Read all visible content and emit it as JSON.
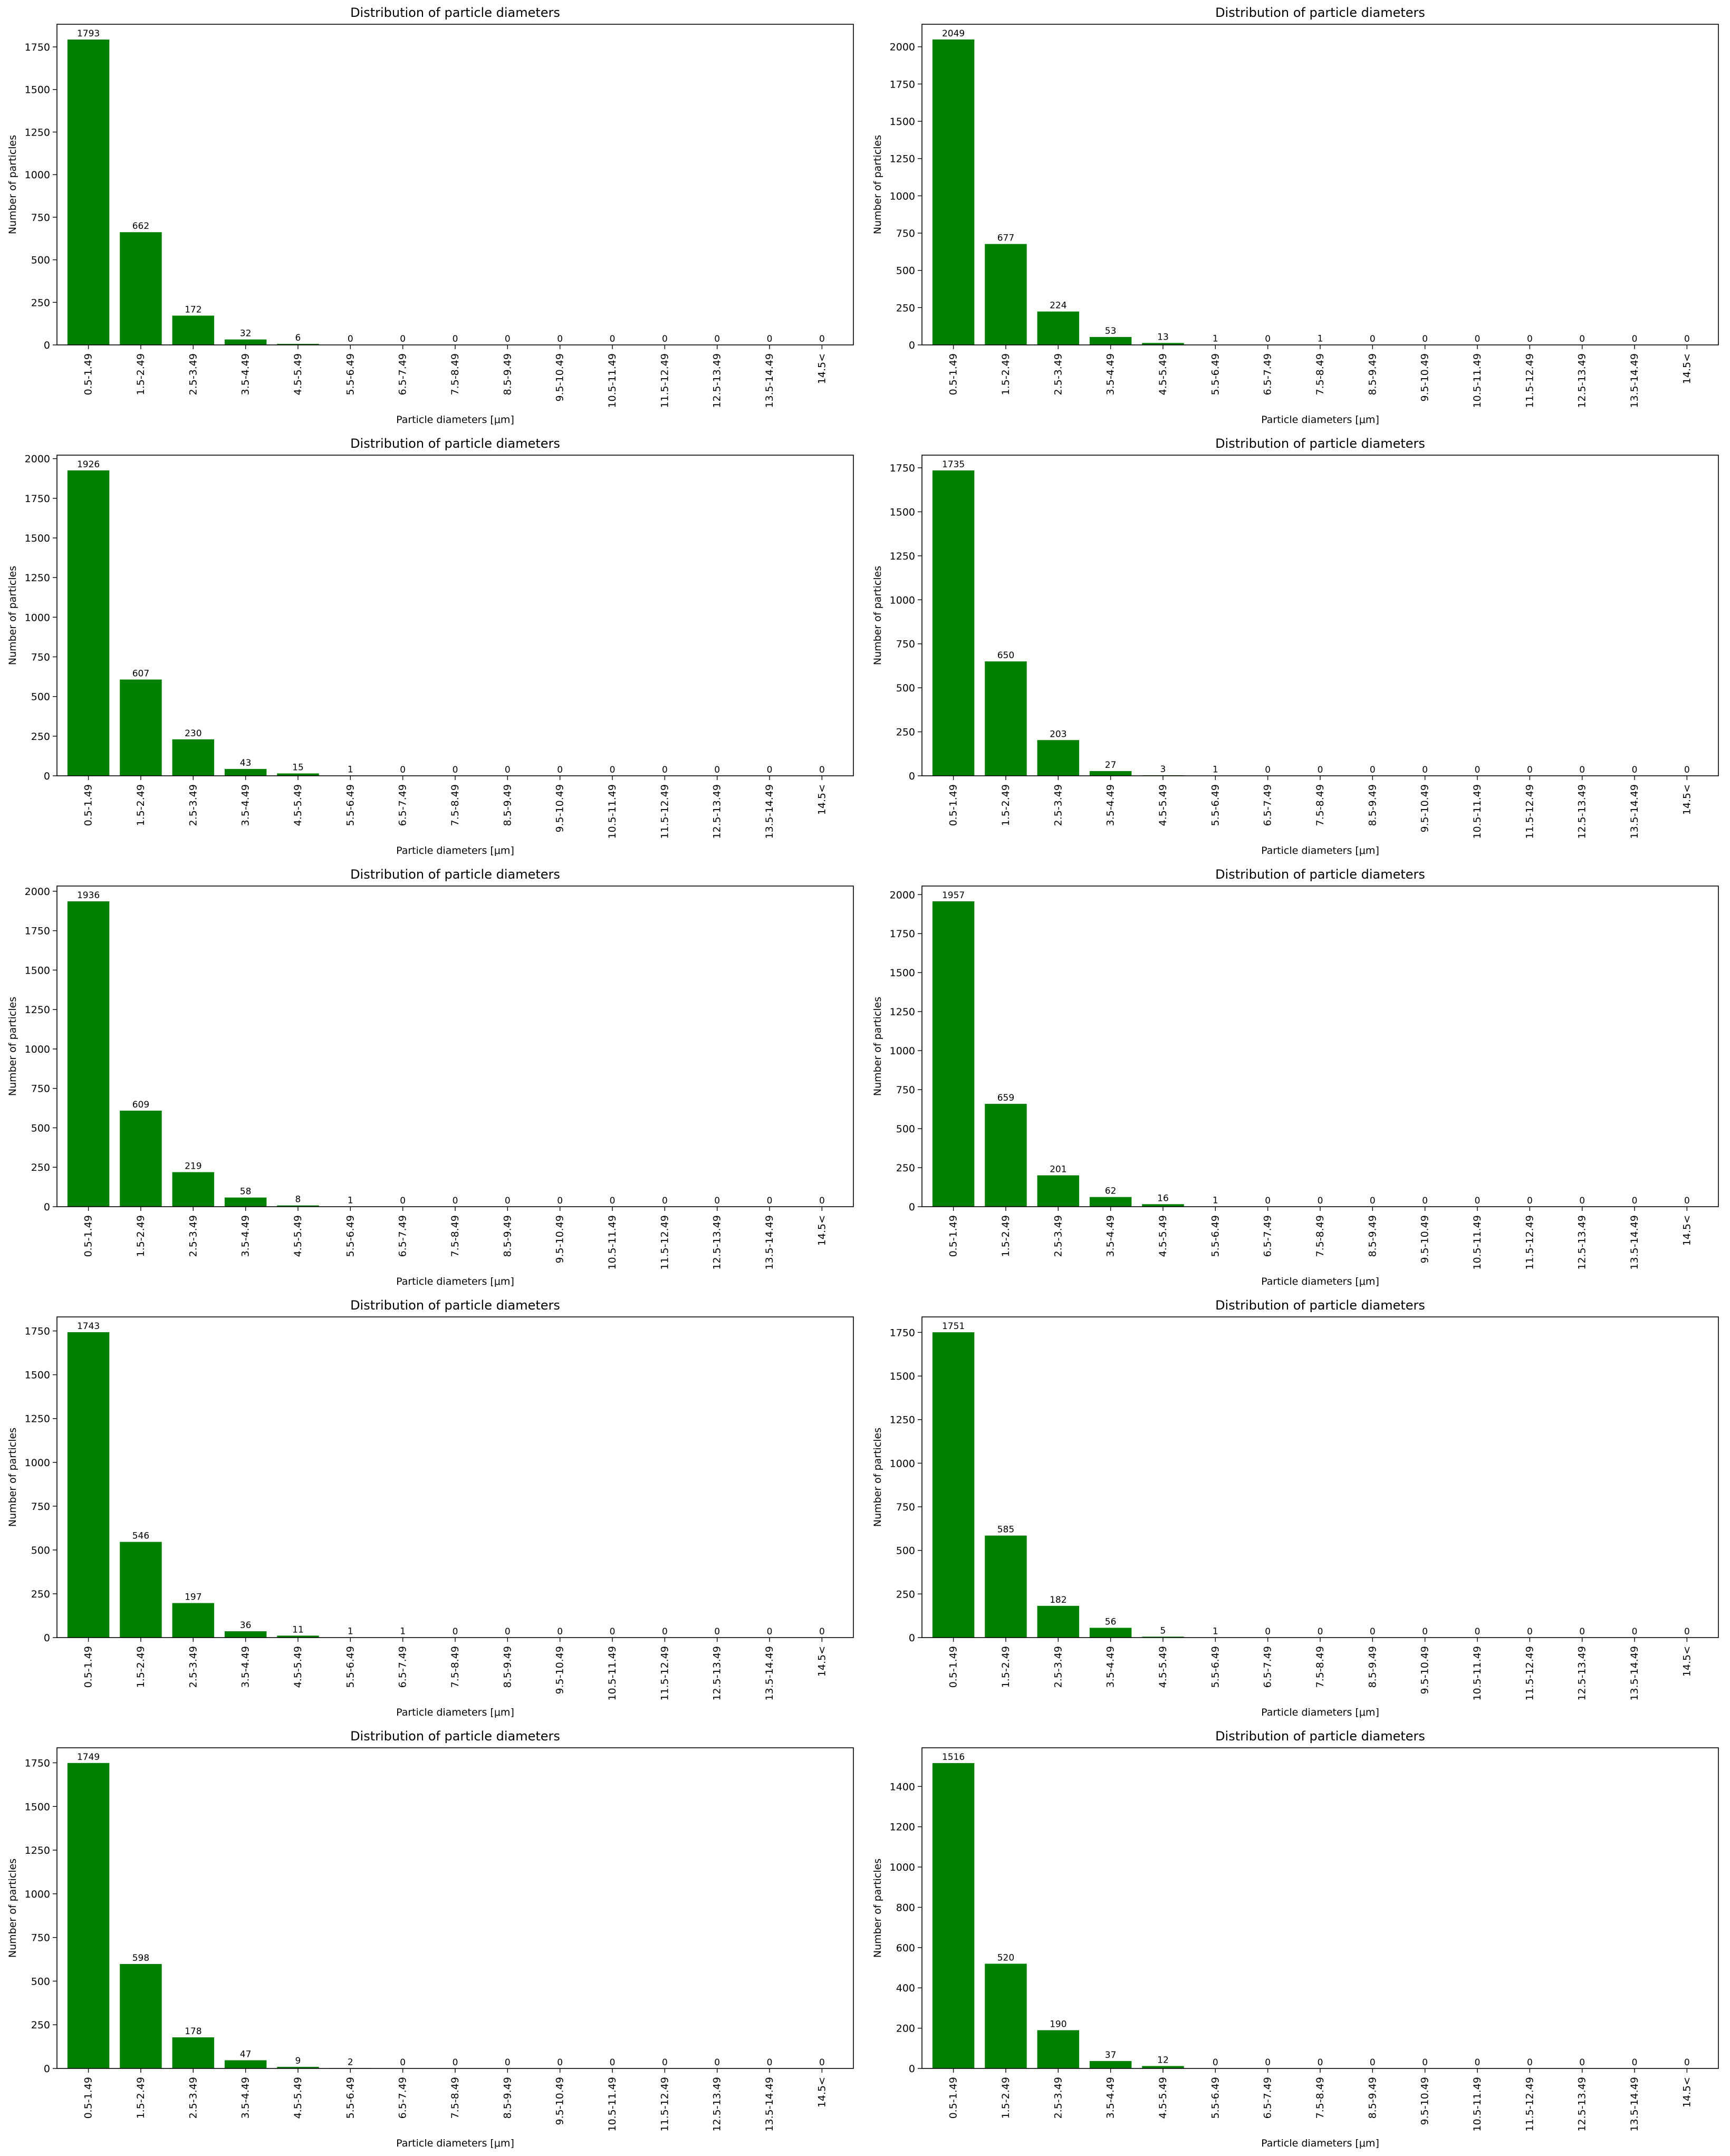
{
  "figure": {
    "layout": "5 rows x 2 columns grid of bar charts",
    "bar_color": "#008000",
    "axis_color": "#000000",
    "background": "#ffffff"
  },
  "chart_data": [
    {
      "type": "bar",
      "title": "Distribution of particle diameters",
      "xlabel": "Particle diameters [μm]",
      "ylabel": "Number of particles",
      "categories": [
        "0.5-1.49",
        "1.5-2.49",
        "2.5-3.49",
        "3.5-4.49",
        "4.5-5.49",
        "5.5-6.49",
        "6.5-7.49",
        "7.5-8.49",
        "8.5-9.49",
        "9.5-10.49",
        "10.5-11.49",
        "11.5-12.49",
        "12.5-13.49",
        "13.5-14.49",
        "14.5<"
      ],
      "values": [
        1793,
        662,
        172,
        32,
        6,
        0,
        0,
        0,
        0,
        0,
        0,
        0,
        0,
        0,
        0
      ],
      "yticks": [
        0,
        250,
        500,
        750,
        1000,
        1250,
        1500,
        1750
      ],
      "ylim": [
        0,
        1883
      ],
      "grid": false,
      "color": "#008000"
    },
    {
      "type": "bar",
      "title": "Distribution of particle diameters",
      "xlabel": "Particle diameters [μm]",
      "ylabel": "Number of particles",
      "categories": [
        "0.5-1.49",
        "1.5-2.49",
        "2.5-3.49",
        "3.5-4.49",
        "4.5-5.49",
        "5.5-6.49",
        "6.5-7.49",
        "7.5-8.49",
        "8.5-9.49",
        "9.5-10.49",
        "10.5-11.49",
        "11.5-12.49",
        "12.5-13.49",
        "13.5-14.49",
        "14.5<"
      ],
      "values": [
        2049,
        677,
        224,
        53,
        13,
        1,
        0,
        1,
        0,
        0,
        0,
        0,
        0,
        0,
        0
      ],
      "yticks": [
        0,
        250,
        500,
        750,
        1000,
        1250,
        1500,
        1750,
        2000
      ],
      "ylim": [
        0,
        2151
      ],
      "grid": false,
      "color": "#008000"
    },
    {
      "type": "bar",
      "title": "Distribution of particle diameters",
      "xlabel": "Particle diameters [μm]",
      "ylabel": "Number of particles",
      "categories": [
        "0.5-1.49",
        "1.5-2.49",
        "2.5-3.49",
        "3.5-4.49",
        "4.5-5.49",
        "5.5-6.49",
        "6.5-7.49",
        "7.5-8.49",
        "8.5-9.49",
        "9.5-10.49",
        "10.5-11.49",
        "11.5-12.49",
        "12.5-13.49",
        "13.5-14.49",
        "14.5<"
      ],
      "values": [
        1926,
        607,
        230,
        43,
        15,
        1,
        0,
        0,
        0,
        0,
        0,
        0,
        0,
        0,
        0
      ],
      "yticks": [
        0,
        250,
        500,
        750,
        1000,
        1250,
        1500,
        1750,
        2000
      ],
      "ylim": [
        0,
        2022
      ],
      "grid": false,
      "color": "#008000"
    },
    {
      "type": "bar",
      "title": "Distribution of particle diameters",
      "xlabel": "Particle diameters [μm]",
      "ylabel": "Number of particles",
      "categories": [
        "0.5-1.49",
        "1.5-2.49",
        "2.5-3.49",
        "3.5-4.49",
        "4.5-5.49",
        "5.5-6.49",
        "6.5-7.49",
        "7.5-8.49",
        "8.5-9.49",
        "9.5-10.49",
        "10.5-11.49",
        "11.5-12.49",
        "12.5-13.49",
        "13.5-14.49",
        "14.5<"
      ],
      "values": [
        1735,
        650,
        203,
        27,
        3,
        1,
        0,
        0,
        0,
        0,
        0,
        0,
        0,
        0,
        0
      ],
      "yticks": [
        0,
        250,
        500,
        750,
        1000,
        1250,
        1500,
        1750
      ],
      "ylim": [
        0,
        1822
      ],
      "grid": false,
      "color": "#008000"
    },
    {
      "type": "bar",
      "title": "Distribution of particle diameters",
      "xlabel": "Particle diameters [μm]",
      "ylabel": "Number of particles",
      "categories": [
        "0.5-1.49",
        "1.5-2.49",
        "2.5-3.49",
        "3.5-4.49",
        "4.5-5.49",
        "5.5-6.49",
        "6.5-7.49",
        "7.5-8.49",
        "8.5-9.49",
        "9.5-10.49",
        "10.5-11.49",
        "11.5-12.49",
        "12.5-13.49",
        "13.5-14.49",
        "14.5<"
      ],
      "values": [
        1936,
        609,
        219,
        58,
        8,
        1,
        0,
        0,
        0,
        0,
        0,
        0,
        0,
        0,
        0
      ],
      "yticks": [
        0,
        250,
        500,
        750,
        1000,
        1250,
        1500,
        1750,
        2000
      ],
      "ylim": [
        0,
        2033
      ],
      "grid": false,
      "color": "#008000"
    },
    {
      "type": "bar",
      "title": "Distribution of particle diameters",
      "xlabel": "Particle diameters [μm]",
      "ylabel": "Number of particles",
      "categories": [
        "0.5-1.49",
        "1.5-2.49",
        "2.5-3.49",
        "3.5-4.49",
        "4.5-5.49",
        "5.5-6.49",
        "6.5-7.49",
        "7.5-8.49",
        "8.5-9.49",
        "9.5-10.49",
        "10.5-11.49",
        "11.5-12.49",
        "12.5-13.49",
        "13.5-14.49",
        "14.5<"
      ],
      "values": [
        1957,
        659,
        201,
        62,
        16,
        1,
        0,
        0,
        0,
        0,
        0,
        0,
        0,
        0,
        0
      ],
      "yticks": [
        0,
        250,
        500,
        750,
        1000,
        1250,
        1500,
        1750,
        2000
      ],
      "ylim": [
        0,
        2055
      ],
      "grid": false,
      "color": "#008000"
    },
    {
      "type": "bar",
      "title": "Distribution of particle diameters",
      "xlabel": "Particle diameters [μm]",
      "ylabel": "Number of particles",
      "categories": [
        "0.5-1.49",
        "1.5-2.49",
        "2.5-3.49",
        "3.5-4.49",
        "4.5-5.49",
        "5.5-6.49",
        "6.5-7.49",
        "7.5-8.49",
        "8.5-9.49",
        "9.5-10.49",
        "10.5-11.49",
        "11.5-12.49",
        "12.5-13.49",
        "13.5-14.49",
        "14.5<"
      ],
      "values": [
        1743,
        546,
        197,
        36,
        11,
        1,
        1,
        0,
        0,
        0,
        0,
        0,
        0,
        0,
        0
      ],
      "yticks": [
        0,
        250,
        500,
        750,
        1000,
        1250,
        1500,
        1750
      ],
      "ylim": [
        0,
        1830
      ],
      "grid": false,
      "color": "#008000"
    },
    {
      "type": "bar",
      "title": "Distribution of particle diameters",
      "xlabel": "Particle diameters [μm]",
      "ylabel": "Number of particles",
      "categories": [
        "0.5-1.49",
        "1.5-2.49",
        "2.5-3.49",
        "3.5-4.49",
        "4.5-5.49",
        "5.5-6.49",
        "6.5-7.49",
        "7.5-8.49",
        "8.5-9.49",
        "9.5-10.49",
        "10.5-11.49",
        "11.5-12.49",
        "12.5-13.49",
        "13.5-14.49",
        "14.5<"
      ],
      "values": [
        1751,
        585,
        182,
        56,
        5,
        1,
        0,
        0,
        0,
        0,
        0,
        0,
        0,
        0,
        0
      ],
      "yticks": [
        0,
        250,
        500,
        750,
        1000,
        1250,
        1500,
        1750
      ],
      "ylim": [
        0,
        1839
      ],
      "grid": false,
      "color": "#008000"
    },
    {
      "type": "bar",
      "title": "Distribution of particle diameters",
      "xlabel": "Particle diameters [μm]",
      "ylabel": "Number of particles",
      "categories": [
        "0.5-1.49",
        "1.5-2.49",
        "2.5-3.49",
        "3.5-4.49",
        "4.5-5.49",
        "5.5-6.49",
        "6.5-7.49",
        "7.5-8.49",
        "8.5-9.49",
        "9.5-10.49",
        "10.5-11.49",
        "11.5-12.49",
        "12.5-13.49",
        "13.5-14.49",
        "14.5<"
      ],
      "values": [
        1749,
        598,
        178,
        47,
        9,
        2,
        0,
        0,
        0,
        0,
        0,
        0,
        0,
        0,
        0
      ],
      "yticks": [
        0,
        250,
        500,
        750,
        1000,
        1250,
        1500,
        1750
      ],
      "ylim": [
        0,
        1836
      ],
      "grid": false,
      "color": "#008000"
    },
    {
      "type": "bar",
      "title": "Distribution of particle diameters",
      "xlabel": "Particle diameters [μm]",
      "ylabel": "Number of particles",
      "categories": [
        "0.5-1.49",
        "1.5-2.49",
        "2.5-3.49",
        "3.5-4.49",
        "4.5-5.49",
        "5.5-6.49",
        "6.5-7.49",
        "7.5-8.49",
        "8.5-9.49",
        "9.5-10.49",
        "10.5-11.49",
        "11.5-12.49",
        "12.5-13.49",
        "13.5-14.49",
        "14.5<"
      ],
      "values": [
        1516,
        520,
        190,
        37,
        12,
        0,
        0,
        0,
        0,
        0,
        0,
        0,
        0,
        0,
        0
      ],
      "yticks": [
        0,
        200,
        400,
        600,
        800,
        1000,
        1200,
        1400
      ],
      "ylim": [
        0,
        1592
      ],
      "grid": false,
      "color": "#008000"
    }
  ]
}
